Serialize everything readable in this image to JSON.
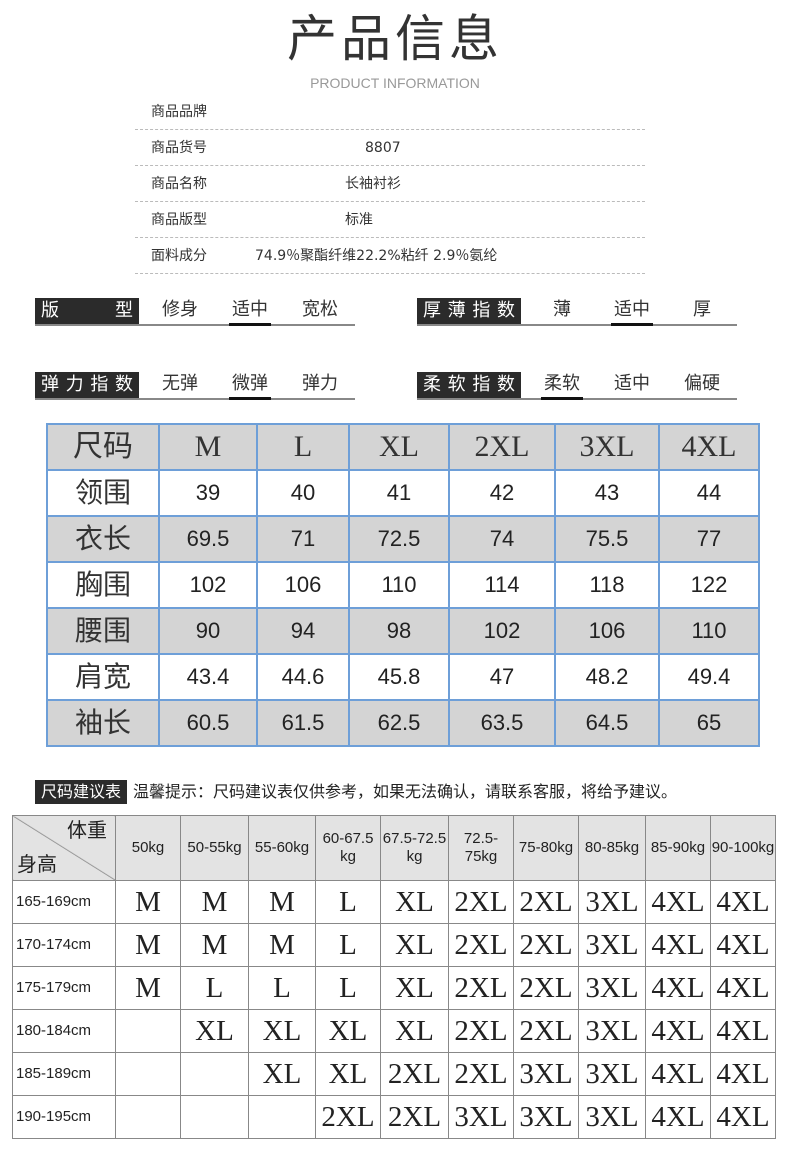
{
  "header": {
    "title": "产品信息",
    "subtitle": "PRODUCT INFORMATION"
  },
  "info": [
    {
      "label": "商品品牌",
      "value": ""
    },
    {
      "label": "商品货号",
      "value": "8807"
    },
    {
      "label": "商品名称",
      "value": "长袖衬衫"
    },
    {
      "label": "商品版型",
      "value": "标准"
    },
    {
      "label": "面料成分",
      "value": "74.9％聚酯纤维22.2%粘纤 2.9％氨纶"
    }
  ],
  "attributes": [
    {
      "name": "版型",
      "options": [
        "修身",
        "适中",
        "宽松"
      ],
      "selected": "适中"
    },
    {
      "name": "厚薄指数",
      "options": [
        "薄",
        "适中",
        "厚"
      ],
      "selected": "适中"
    },
    {
      "name": "弹力指数",
      "options": [
        "无弹",
        "微弹",
        "弹力"
      ],
      "selected": "微弹"
    },
    {
      "name": "柔软指数",
      "options": [
        "柔软",
        "适中",
        "偏硬"
      ],
      "selected": "柔软"
    }
  ],
  "size_table": {
    "header": [
      "尺码",
      "M",
      "L",
      "XL",
      "2XL",
      "3XL",
      "4XL"
    ],
    "rows": [
      [
        "领围",
        "39",
        "40",
        "41",
        "42",
        "43",
        "44"
      ],
      [
        "衣长",
        "69.5",
        "71",
        "72.5",
        "74",
        "75.5",
        "77"
      ],
      [
        "胸围",
        "102",
        "106",
        "110",
        "114",
        "118",
        "122"
      ],
      [
        "腰围",
        "90",
        "94",
        "98",
        "102",
        "106",
        "110"
      ],
      [
        "肩宽",
        "43.4",
        "44.6",
        "45.8",
        "47",
        "48.2",
        "49.4"
      ],
      [
        "袖长",
        "60.5",
        "61.5",
        "62.5",
        "63.5",
        "64.5",
        "65"
      ]
    ]
  },
  "recommend": {
    "label": "尺码建议表",
    "tip": "温馨提示：尺码建议表仅供参考，如果无法确认，请联系客服，将给予建议。",
    "corner_weight": "体重",
    "corner_height": "身高",
    "weights": [
      "50kg",
      "50-55kg",
      "55-60kg",
      "60-67.5 kg",
      "67.5-72.5 kg",
      "72.5-75kg",
      "75-80kg",
      "80-85kg",
      "85-90kg",
      "90-100kg"
    ],
    "rows": [
      {
        "height": "165-169cm",
        "sizes": [
          "M",
          "M",
          "M",
          "L",
          "XL",
          "2XL",
          "2XL",
          "3XL",
          "4XL",
          "4XL"
        ]
      },
      {
        "height": "170-174cm",
        "sizes": [
          "M",
          "M",
          "M",
          "L",
          "XL",
          "2XL",
          "2XL",
          "3XL",
          "4XL",
          "4XL"
        ]
      },
      {
        "height": "175-179cm",
        "sizes": [
          "M",
          "L",
          "L",
          "L",
          "XL",
          "2XL",
          "2XL",
          "3XL",
          "4XL",
          "4XL"
        ]
      },
      {
        "height": "180-184cm",
        "sizes": [
          "",
          "XL",
          "XL",
          "XL",
          "XL",
          "2XL",
          "2XL",
          "3XL",
          "4XL",
          "4XL"
        ]
      },
      {
        "height": "185-189cm",
        "sizes": [
          "",
          "",
          "XL",
          "XL",
          "2XL",
          "2XL",
          "3XL",
          "3XL",
          "4XL",
          "4XL"
        ]
      },
      {
        "height": "190-195cm",
        "sizes": [
          "",
          "",
          "",
          "2XL",
          "2XL",
          "3XL",
          "3XL",
          "3XL",
          "4XL",
          "4XL"
        ]
      }
    ]
  }
}
